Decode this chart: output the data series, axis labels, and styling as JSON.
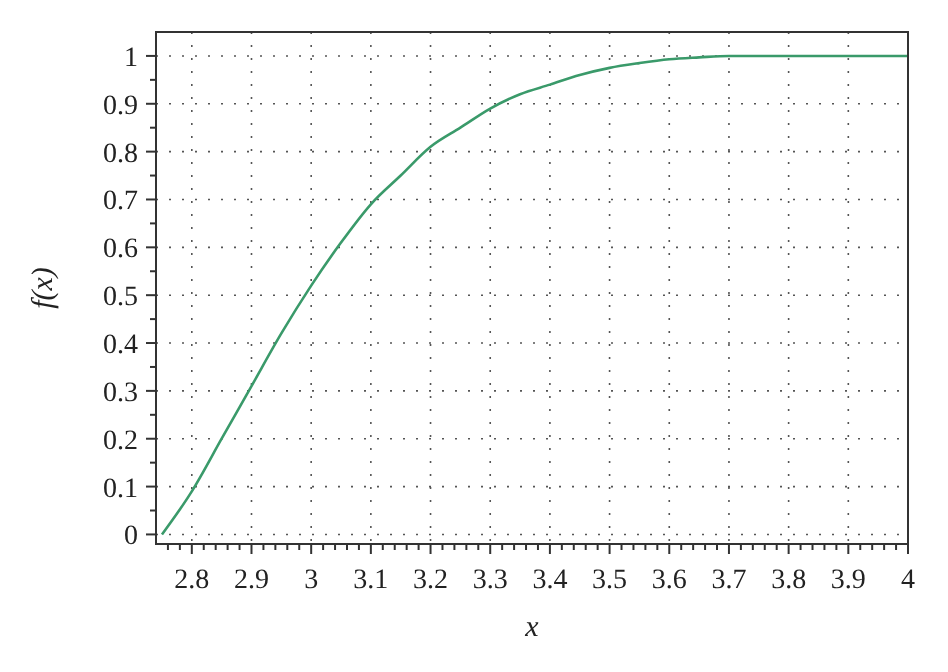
{
  "chart_data": {
    "type": "line",
    "xlabel": "x",
    "ylabel": "f(x)",
    "xlim": [
      2.74,
      4
    ],
    "ylim": [
      -0.02,
      1.05
    ],
    "xticks": [
      {
        "value": 2.76,
        "label": null
      },
      {
        "value": 2.78,
        "label": null
      },
      2.8,
      {
        "value": 2.82,
        "label": null
      },
      {
        "value": 2.84,
        "label": null
      },
      {
        "value": 2.86,
        "label": null
      },
      {
        "value": 2.88,
        "label": null
      },
      2.9,
      {
        "value": 2.92,
        "label": null
      },
      {
        "value": 2.94,
        "label": null
      },
      {
        "value": 2.96,
        "label": null
      },
      {
        "value": 2.98,
        "label": null
      },
      3,
      {
        "value": 3.02,
        "label": null
      },
      {
        "value": 3.04,
        "label": null
      },
      {
        "value": 3.06,
        "label": null
      },
      {
        "value": 3.08,
        "label": null
      },
      3.1,
      {
        "value": 3.12,
        "label": null
      },
      {
        "value": 3.14,
        "label": null
      },
      {
        "value": 3.16,
        "label": null
      },
      {
        "value": 3.18,
        "label": null
      },
      3.2,
      {
        "value": 3.22,
        "label": null
      },
      {
        "value": 3.24,
        "label": null
      },
      {
        "value": 3.26,
        "label": null
      },
      {
        "value": 3.28,
        "label": null
      },
      3.3,
      {
        "value": 3.32,
        "label": null
      },
      {
        "value": 3.34,
        "label": null
      },
      {
        "value": 3.36,
        "label": null
      },
      {
        "value": 3.38,
        "label": null
      },
      3.4,
      {
        "value": 3.42,
        "label": null
      },
      {
        "value": 3.44,
        "label": null
      },
      {
        "value": 3.46,
        "label": null
      },
      {
        "value": 3.48,
        "label": null
      },
      3.5,
      {
        "value": 3.52,
        "label": null
      },
      {
        "value": 3.54,
        "label": null
      },
      {
        "value": 3.56,
        "label": null
      },
      {
        "value": 3.58,
        "label": null
      },
      3.6,
      {
        "value": 3.62,
        "label": null
      },
      {
        "value": 3.64,
        "label": null
      },
      {
        "value": 3.66,
        "label": null
      },
      {
        "value": 3.68,
        "label": null
      },
      3.7,
      {
        "value": 3.72,
        "label": null
      },
      {
        "value": 3.74,
        "label": null
      },
      {
        "value": 3.76,
        "label": null
      },
      {
        "value": 3.78,
        "label": null
      },
      3.8,
      {
        "value": 3.82,
        "label": null
      },
      {
        "value": 3.84,
        "label": null
      },
      {
        "value": 3.86,
        "label": null
      },
      {
        "value": 3.88,
        "label": null
      },
      3.9,
      {
        "value": 3.92,
        "label": null
      },
      {
        "value": 3.94,
        "label": null
      },
      {
        "value": 3.96,
        "label": null
      },
      {
        "value": 3.98,
        "label": null
      },
      4
    ],
    "yticks": [
      0,
      {
        "value": 0.05,
        "label": null
      },
      0.1,
      {
        "value": 0.15,
        "label": null
      },
      0.2,
      {
        "value": 0.25,
        "label": null
      },
      0.3,
      {
        "value": 0.35,
        "label": null
      },
      0.4,
      {
        "value": 0.45,
        "label": null
      },
      0.5,
      {
        "value": 0.55,
        "label": null
      },
      0.6,
      {
        "value": 0.65,
        "label": null
      },
      0.7,
      {
        "value": 0.75,
        "label": null
      },
      0.8,
      {
        "value": 0.85,
        "label": null
      },
      0.9,
      {
        "value": 0.95,
        "label": null
      },
      1
    ],
    "grid": true,
    "line_style": "solid",
    "marker": "none",
    "series": [
      {
        "color": "#3a9a6a",
        "x": [
          2.75,
          2.8,
          2.85,
          2.9,
          2.95,
          3.0,
          3.05,
          3.1,
          3.15,
          3.2,
          3.25,
          3.3,
          3.35,
          3.4,
          3.45,
          3.5,
          3.55,
          3.6,
          3.65,
          3.7,
          3.8,
          3.9,
          4
        ],
        "values": [
          0,
          0.09,
          0.2,
          0.31,
          0.42,
          0.52,
          0.61,
          0.69,
          0.75,
          0.81,
          0.85,
          0.89,
          0.92,
          0.94,
          0.96,
          0.975,
          0.985,
          0.993,
          0.997,
          1,
          1,
          1,
          1
        ]
      }
    ]
  }
}
